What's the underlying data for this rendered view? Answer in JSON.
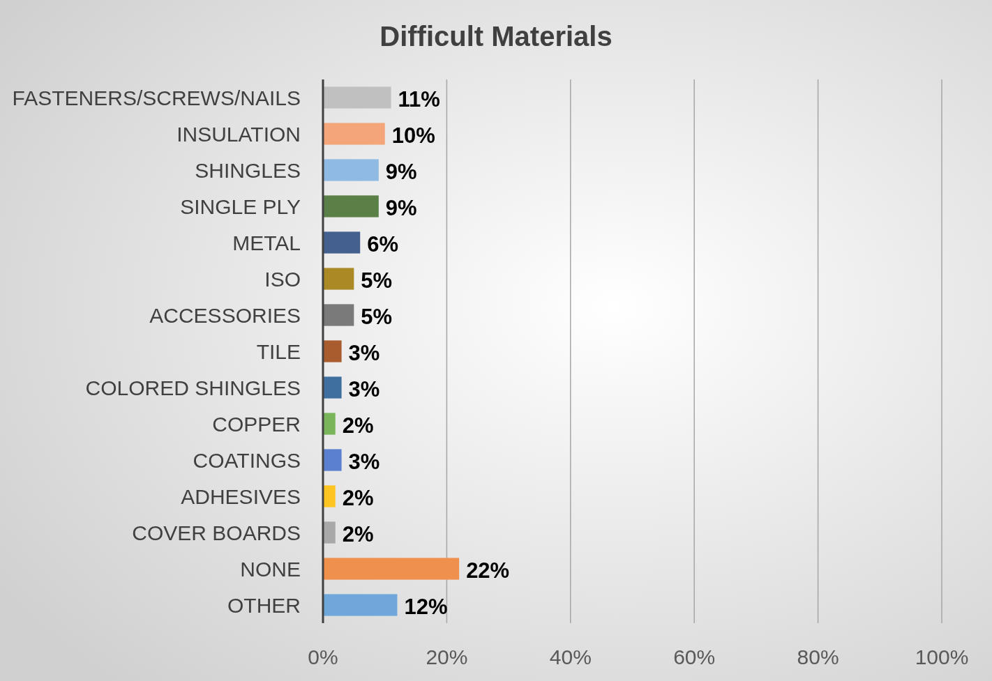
{
  "chart_data": {
    "type": "bar",
    "orientation": "horizontal",
    "title": "Difficult Materials",
    "categories": [
      "FASTENERS/SCREWS/NAILS",
      "INSULATION",
      "SHINGLES",
      "SINGLE PLY",
      "METAL",
      "ISO",
      "ACCESSORIES",
      "TILE",
      "COLORED SHINGLES",
      "COPPER",
      "COATINGS",
      "ADHESIVES",
      "COVER BOARDS",
      "NONE",
      "OTHER"
    ],
    "values": [
      11,
      10,
      9,
      9,
      6,
      5,
      5,
      3,
      3,
      2,
      3,
      2,
      2,
      22,
      12
    ],
    "value_labels": [
      "11%",
      "10%",
      "9%",
      "9%",
      "6%",
      "5%",
      "5%",
      "3%",
      "3%",
      "2%",
      "3%",
      "2%",
      "2%",
      "22%",
      "12%"
    ],
    "colors": [
      "#c0c0c0",
      "#f4a67a",
      "#8fbae4",
      "#5a8048",
      "#44608f",
      "#ab8a26",
      "#7a7a7a",
      "#a95c2e",
      "#3f6f9e",
      "#7ab55c",
      "#5b80cf",
      "#fdc422",
      "#a8a8a8",
      "#ef904c",
      "#6fa7da"
    ],
    "xlim": [
      0,
      100
    ],
    "xticks": [
      {
        "value": 0,
        "label": "0%"
      },
      {
        "value": 20,
        "label": "20%"
      },
      {
        "value": 40,
        "label": "40%"
      },
      {
        "value": 60,
        "label": "60%"
      },
      {
        "value": 80,
        "label": "80%"
      },
      {
        "value": 100,
        "label": "100%"
      }
    ],
    "grid": "x"
  }
}
